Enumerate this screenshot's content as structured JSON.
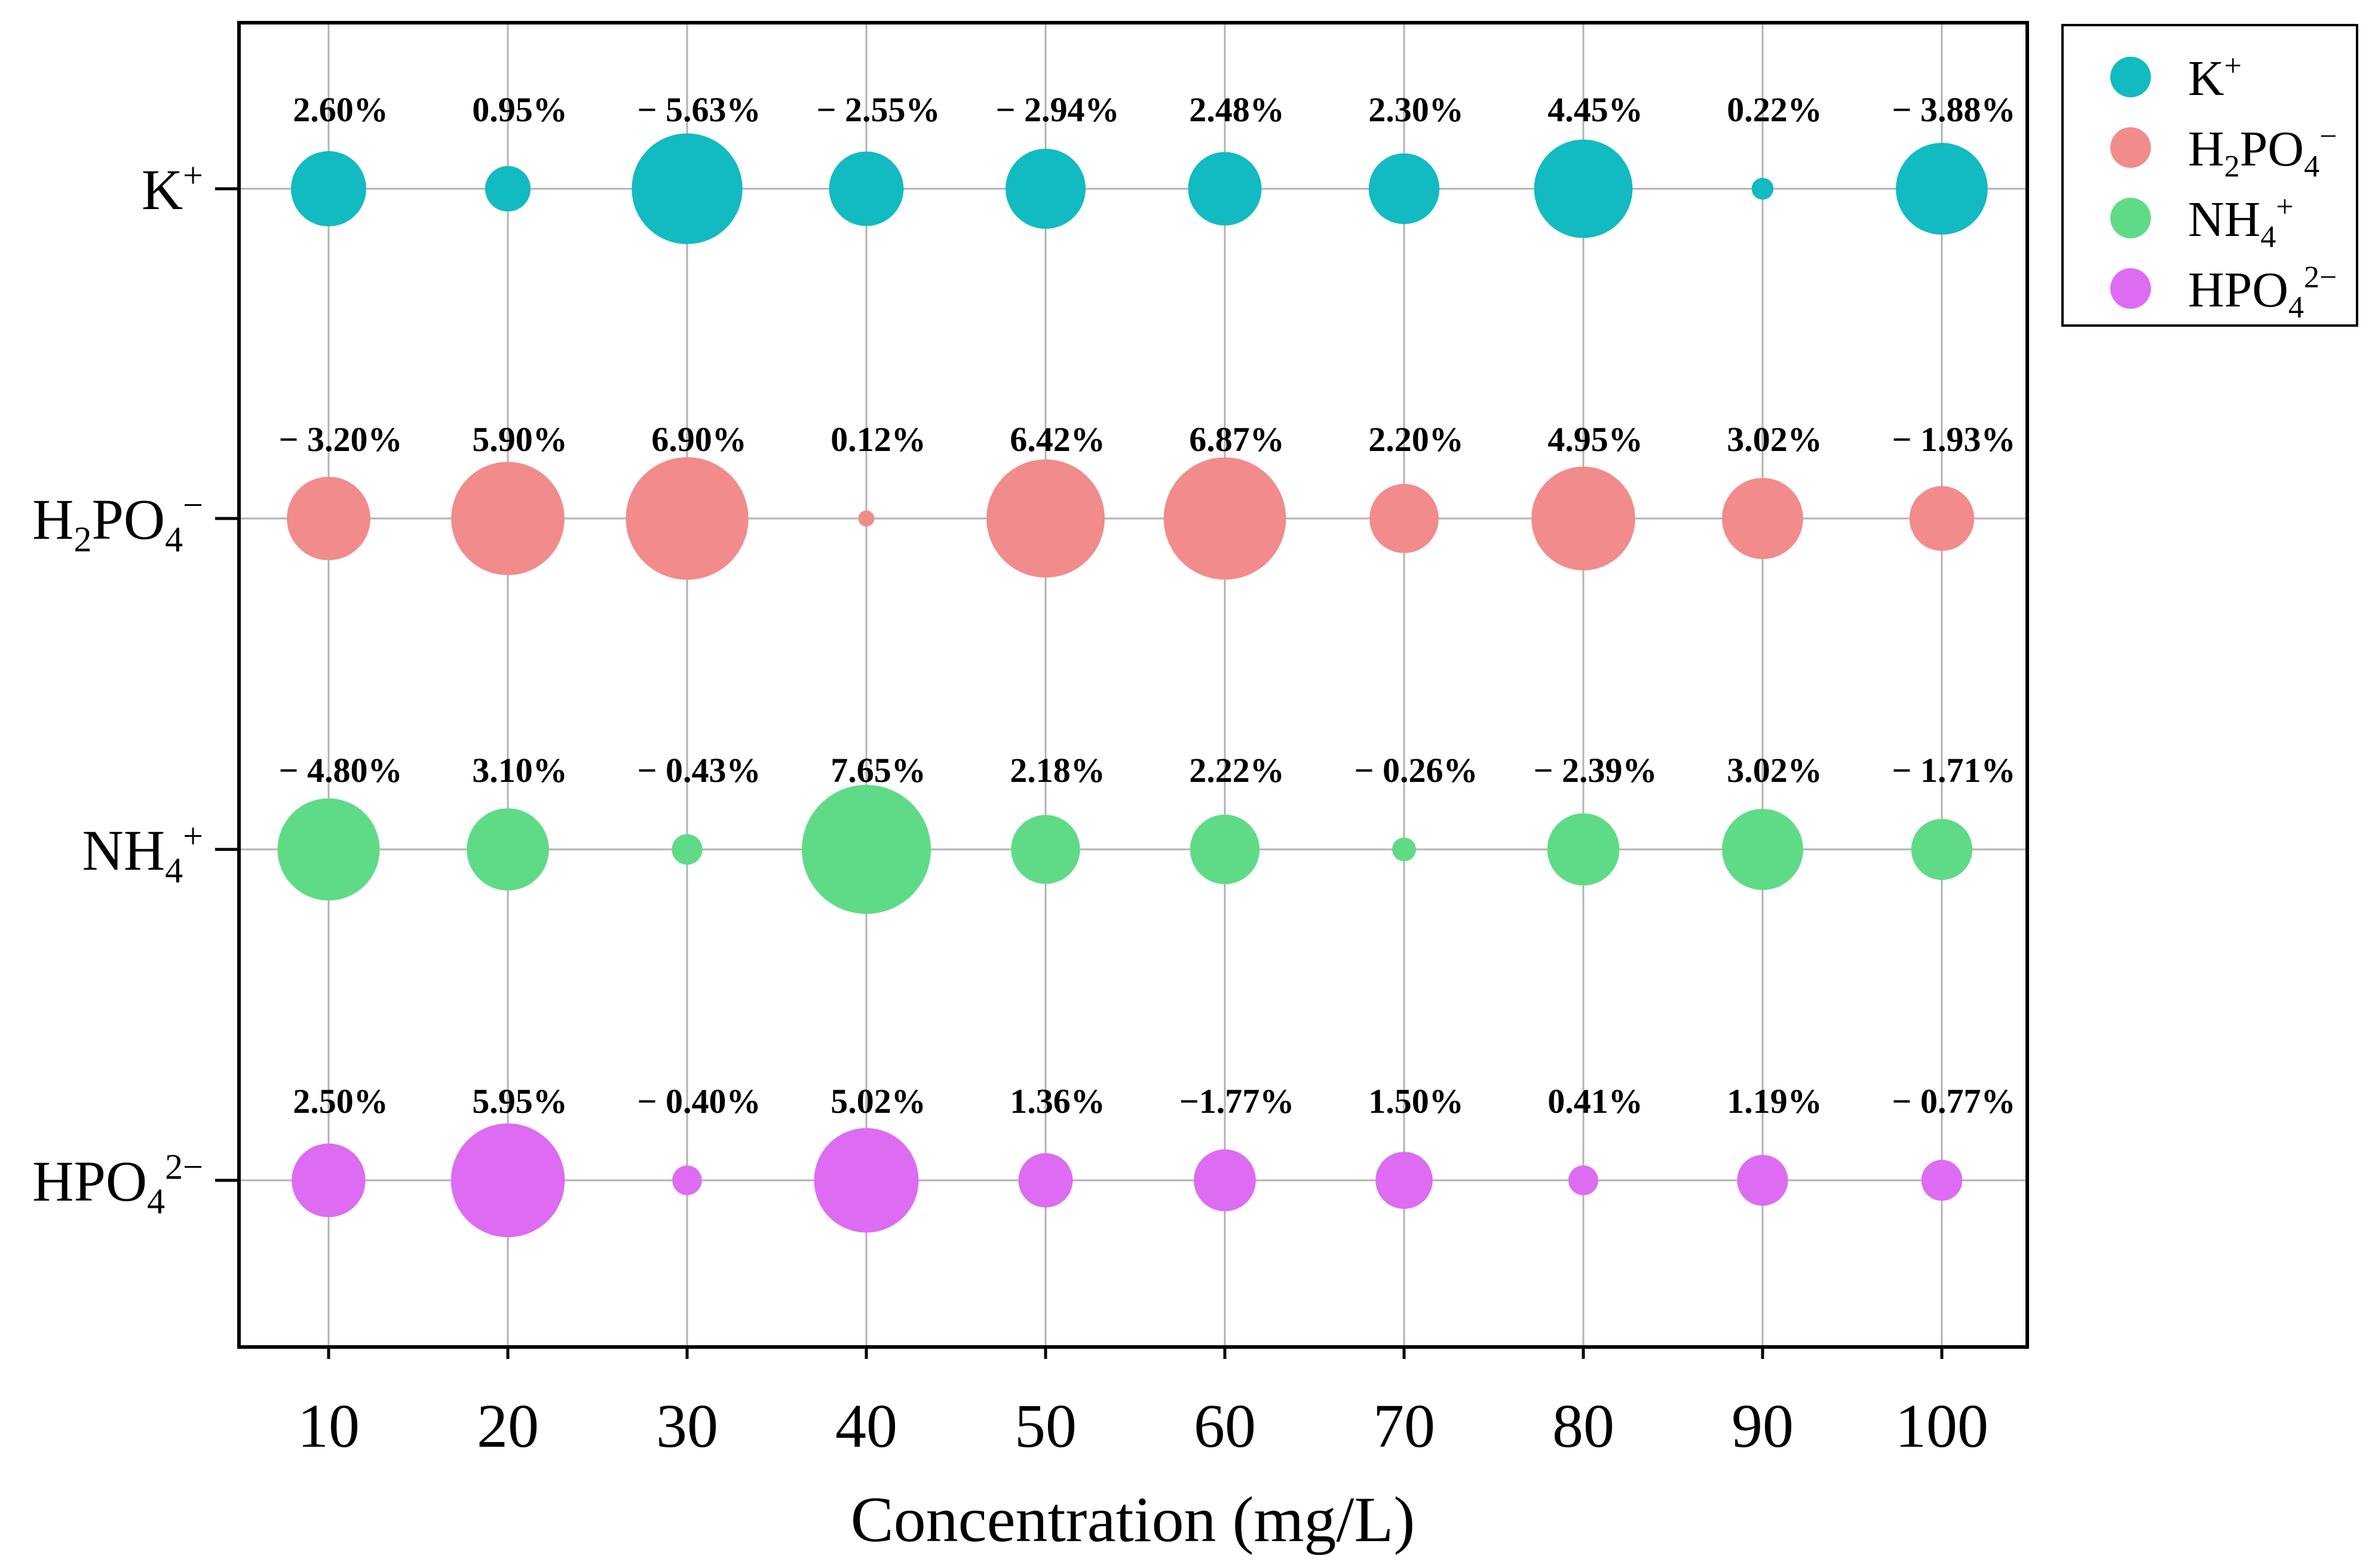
{
  "chart_data": {
    "type": "bubble",
    "title": "",
    "xlabel": "Concentration (mg/L)",
    "ylabel": "",
    "x": [
      10,
      20,
      30,
      40,
      50,
      60,
      70,
      80,
      90,
      100
    ],
    "x_tick_labels": [
      "10",
      "20",
      "30",
      "40",
      "50",
      "60",
      "70",
      "80",
      "90",
      "100"
    ],
    "grid": true,
    "legend_position": "outside-top-right",
    "series": [
      {
        "name": "K+",
        "label_base": "K",
        "label_sub": "",
        "label_sup": "+",
        "color": "#12BAC2",
        "values": [
          2.6,
          0.95,
          -5.63,
          -2.55,
          -2.94,
          2.48,
          2.3,
          4.45,
          0.22,
          -3.88
        ],
        "labels": [
          "2.60%",
          "0.95%",
          "− 5.63%",
          "− 2.55%",
          "− 2.94%",
          "2.48%",
          "2.30%",
          "4.45%",
          "0.22%",
          "− 3.88%"
        ]
      },
      {
        "name": "H2PO4−",
        "label_base": "H",
        "label_sub": "2",
        "label_mid": "PO",
        "label_sub2": "4",
        "label_sup": "−",
        "color": "#F28B8B",
        "values": [
          -3.2,
          5.9,
          6.9,
          0.12,
          6.42,
          6.87,
          2.2,
          4.95,
          3.02,
          -1.93
        ],
        "labels": [
          "− 3.20%",
          "5.90%",
          "6.90%",
          "0.12%",
          "6.42%",
          "6.87%",
          "2.20%",
          "4.95%",
          "3.02%",
          "− 1.93%"
        ]
      },
      {
        "name": "NH4+",
        "label_base": "NH",
        "label_sub": "4",
        "label_sup": "+",
        "color": "#5FDB87",
        "values": [
          -4.8,
          3.1,
          -0.43,
          7.65,
          2.18,
          2.22,
          -0.26,
          -2.39,
          3.02,
          -1.71
        ],
        "labels": [
          "− 4.80%",
          "3.10%",
          "− 0.43%",
          "7.65%",
          "2.18%",
          "2.22%",
          "− 0.26%",
          "− 2.39%",
          "3.02%",
          "− 1.71%"
        ]
      },
      {
        "name": "HPO42−",
        "label_base": "HPO",
        "label_sub": "4",
        "label_sup": "2−",
        "color": "#DD6CF2",
        "values": [
          2.5,
          5.95,
          -0.4,
          5.02,
          1.36,
          -1.77,
          1.5,
          0.41,
          1.19,
          -0.77
        ],
        "labels": [
          "2.50%",
          "5.95%",
          "− 0.40%",
          "5.02%",
          "1.36%",
          "−1.77%",
          "1.50%",
          "0.41%",
          "1.19%",
          "− 0.77%"
        ]
      }
    ]
  }
}
